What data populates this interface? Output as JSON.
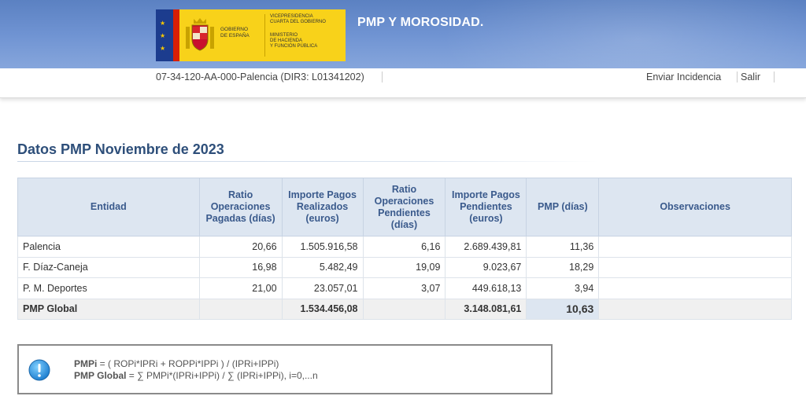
{
  "header": {
    "app_title": "PMP Y MOROSIDAD.",
    "logo": {
      "gov_line1": "GOBIERNO",
      "gov_line2": "DE ESPAÑA",
      "min_line1": "VICEPRESIDENCIA",
      "min_line2": "CUARTA DEL GOBIERNO",
      "min_line3": "MINISTERIO",
      "min_line4": "DE HACIENDA",
      "min_line5": "Y FUNCIÓN PÚBLICA"
    },
    "colors": {
      "banner": "#6f93d2",
      "title": "#ffffff"
    }
  },
  "subbar": {
    "entity_id": "07-34-120-AA-000-Palencia (DIR3: L01341202)",
    "links": {
      "incidencia": "Enviar Incidencia",
      "salir": "Salir"
    }
  },
  "section": {
    "title": "Datos PMP Noviembre de 2023",
    "title_color": "#2e4f7a"
  },
  "table": {
    "headers": {
      "entidad": "Entidad",
      "ratio_pagadas": "Ratio Operaciones Pagadas (días)",
      "importe_realizados": "Importe Pagos Realizados (euros)",
      "ratio_pendientes": "Ratio Operaciones Pendientes (días)",
      "importe_pendientes": "Importe Pagos Pendientes (euros)",
      "pmp": "PMP (días)",
      "observaciones": "Observaciones"
    },
    "rows": [
      {
        "entidad": "Palencia",
        "ratio_pagadas": "20,66",
        "importe_realizados": "1.505.916,58",
        "ratio_pendientes": "6,16",
        "importe_pendientes": "2.689.439,81",
        "pmp": "11,36",
        "observaciones": ""
      },
      {
        "entidad": "F. Díaz-Caneja",
        "ratio_pagadas": "16,98",
        "importe_realizados": "5.482,49",
        "ratio_pendientes": "19,09",
        "importe_pendientes": "9.023,67",
        "pmp": "18,29",
        "observaciones": ""
      },
      {
        "entidad": "P. M. Deportes",
        "ratio_pagadas": "21,00",
        "importe_realizados": "23.057,01",
        "ratio_pendientes": "3,07",
        "importe_pendientes": "449.618,13",
        "pmp": "3,94",
        "observaciones": ""
      }
    ],
    "total": {
      "entidad": "PMP Global",
      "ratio_pagadas": "",
      "importe_realizados": "1.534.456,08",
      "ratio_pendientes": "",
      "importe_pendientes": "3.148.081,61",
      "pmp": "10,63",
      "observaciones": ""
    }
  },
  "formula": {
    "line1_label": "PMPi",
    "line1_text": " = ( ROPi*IPRi + ROPPi*IPPi ) / (IPRi+IPPi)",
    "line2_label": "PMP Global",
    "line2_text": " = ∑ PMPi*(IPRi+IPPi) / ∑ (IPRi+IPPi), i=0,...n",
    "icon": "info-icon"
  }
}
